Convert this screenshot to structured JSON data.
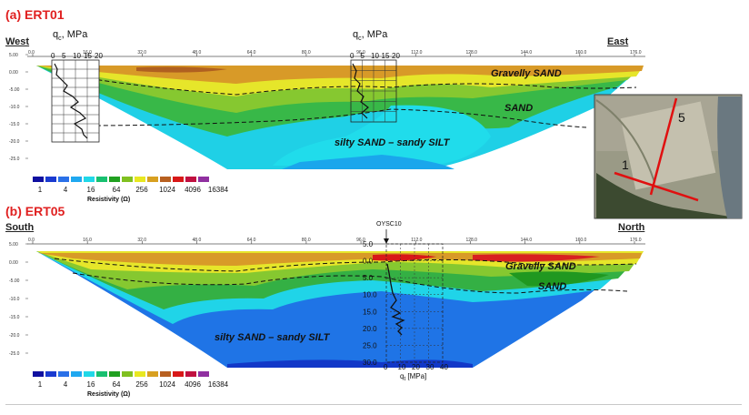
{
  "panel_a": {
    "title": "(a) ERT01",
    "left_dir": "West",
    "right_dir": "East",
    "qc_label": "q",
    "qc_sub": "c",
    "qc_unit": ", MPa",
    "cpt_ticks": [
      "0",
      "5",
      "10",
      "15",
      "20"
    ],
    "top_ticks": [
      "0.0",
      "16.0",
      "32.0",
      "48.0",
      "64.0",
      "80.0",
      "96.0",
      "112.0",
      "128.0",
      "144.0",
      "160.0",
      "176.0"
    ],
    "depth_ticks": [
      "5.00",
      "0.00",
      "-5.00",
      "-10.0",
      "-15.0",
      "-20.0",
      "-25.0"
    ],
    "labels": {
      "gravelly": "Gravelly SAND",
      "sand": "SAND",
      "silty": "silty SAND – sandy SILT"
    }
  },
  "panel_b": {
    "title": "(b) ERT05",
    "left_dir": "South",
    "right_dir": "North",
    "borehole": "OYSC10",
    "top_ticks": [
      "0.0",
      "16.0",
      "32.0",
      "48.0",
      "64.0",
      "80.0",
      "96.0",
      "112.0",
      "128.0",
      "144.0",
      "160.0",
      "176.0"
    ],
    "depth_ticks": [
      "5.00",
      "0.00",
      "-5.00",
      "-10.0",
      "-15.0",
      "-20.0",
      "-25.0"
    ],
    "cpt_depth_ticks": [
      "5.0",
      "0.0",
      "5.0",
      "10.0",
      "15.0",
      "20.0",
      "25.0",
      "30.0"
    ],
    "cpt_x_ticks": [
      "0",
      "10",
      "20",
      "30",
      "40"
    ],
    "cpt_x_label": "q",
    "cpt_x_sub": "t",
    "cpt_x_unit": " [MPa]",
    "labels": {
      "gravelly": "Gravelly SAND",
      "sand": "SAND",
      "silty": "silty SAND – sandy SILT"
    }
  },
  "colorbar": {
    "colors": [
      "#1010a0",
      "#1a3ad0",
      "#2a70e8",
      "#1fa8f0",
      "#20d8e8",
      "#18c070",
      "#20a020",
      "#80c020",
      "#e8e820",
      "#d8a020",
      "#b86020",
      "#d81818",
      "#c01040",
      "#9030a0"
    ],
    "ticks": [
      "1",
      "4",
      "16",
      "64",
      "256",
      "1024",
      "4096",
      "16384"
    ],
    "label": "Resistivity (Ω)"
  },
  "inset_map": {
    "line1_label": "1",
    "line5_label": "5",
    "line_color": "#e01010"
  }
}
